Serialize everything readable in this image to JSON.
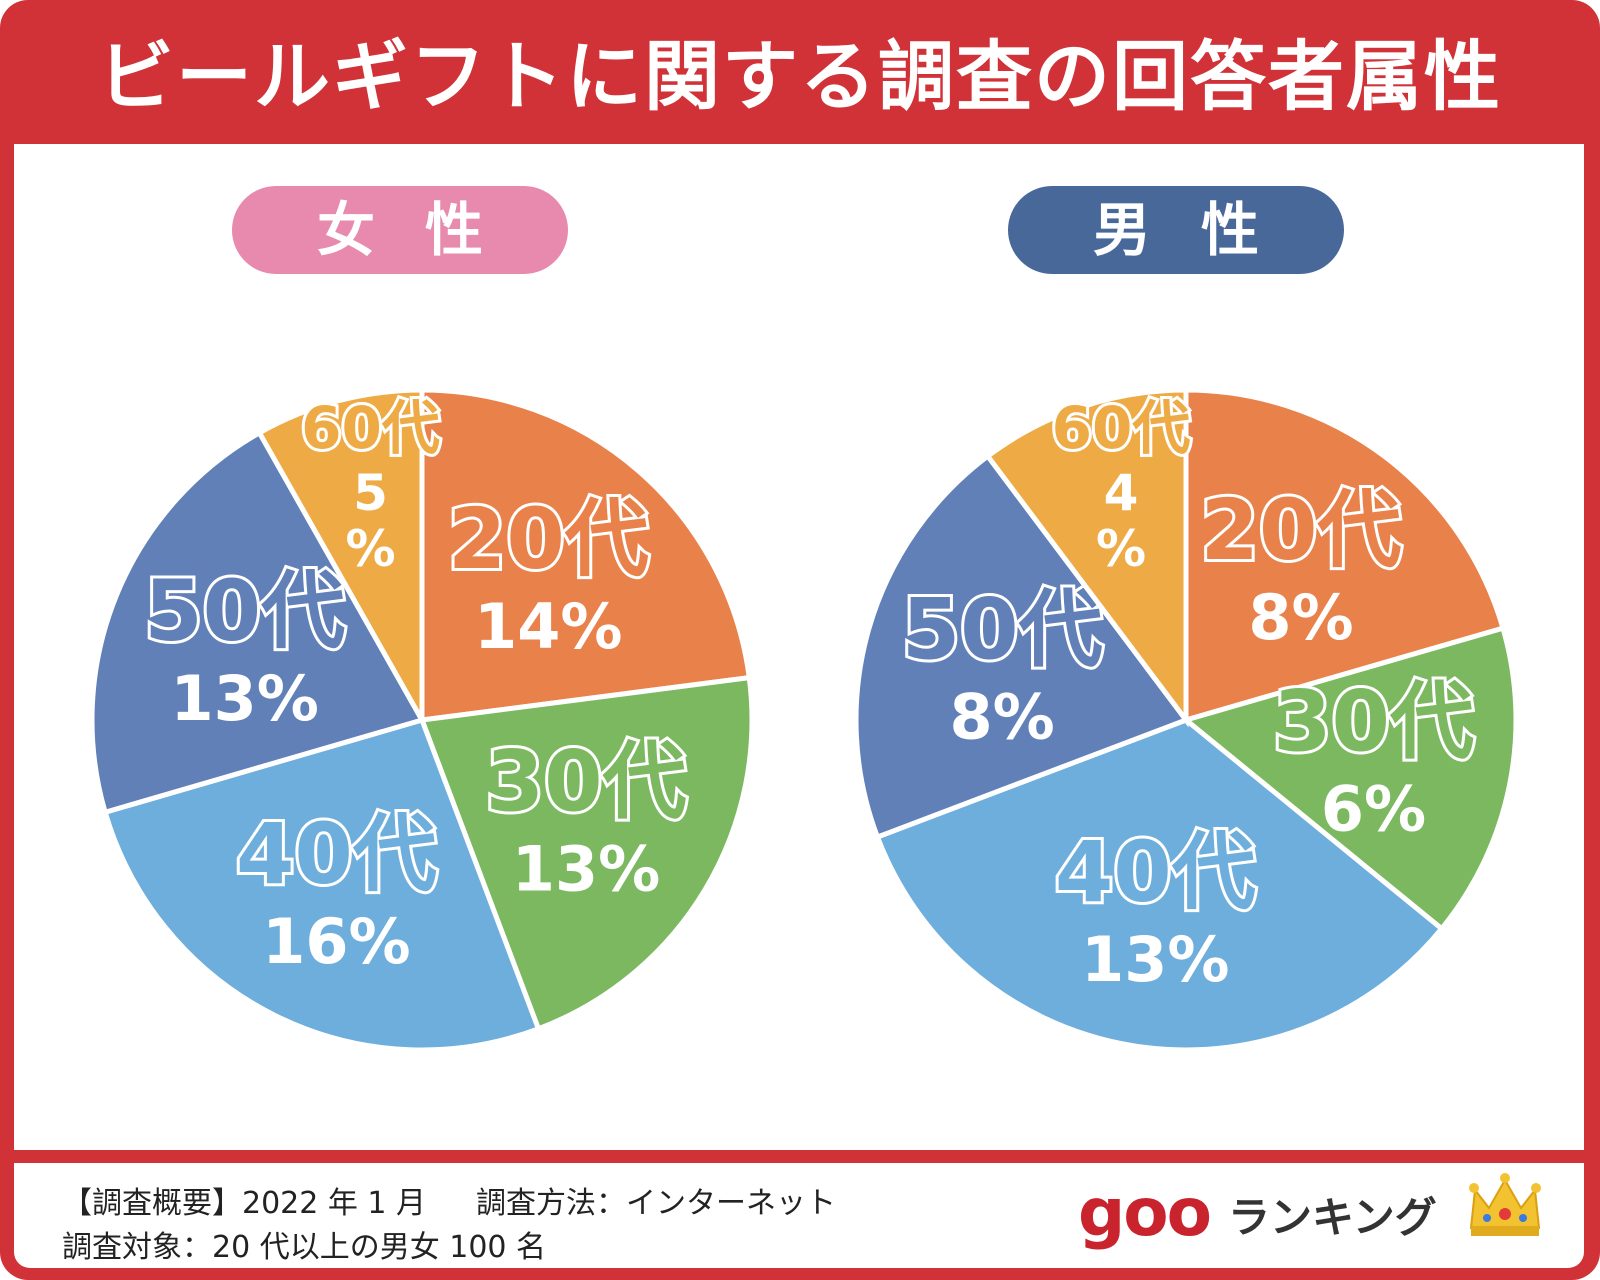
{
  "title": "ビールギフトに関する調査の回答者属性",
  "groups": {
    "female_label": "女性",
    "male_label": "男性"
  },
  "colors": {
    "frame": "#d03238",
    "female_pill": "#e78aad",
    "male_pill": "#48689a",
    "age20": "#e8814a",
    "age30": "#7cb860",
    "age40": "#6eaedc",
    "age50": "#6180b8",
    "age60": "#eeaa45"
  },
  "chart_data": [
    {
      "type": "pie",
      "title": "女性",
      "categories": [
        "20代",
        "30代",
        "40代",
        "50代",
        "60代"
      ],
      "values": [
        14,
        13,
        16,
        13,
        5
      ],
      "value_labels": [
        "14%",
        "13%",
        "16%",
        "13%",
        "5\n%"
      ],
      "unit": "%"
    },
    {
      "type": "pie",
      "title": "男性",
      "categories": [
        "20代",
        "30代",
        "40代",
        "50代",
        "60代"
      ],
      "values": [
        8,
        6,
        13,
        8,
        4
      ],
      "value_labels": [
        "8%",
        "6%",
        "13%",
        "8%",
        "4\n%"
      ],
      "unit": "%"
    }
  ],
  "footer": {
    "summary": "【調査概要】2022 年 1 月",
    "method": "調査方法：インターネット",
    "target": "調査対象：20 代以上の男女 100 名"
  },
  "brand": {
    "goo": "goo",
    "ranking": "ランキング",
    "crown_icon": "crown-icon"
  }
}
